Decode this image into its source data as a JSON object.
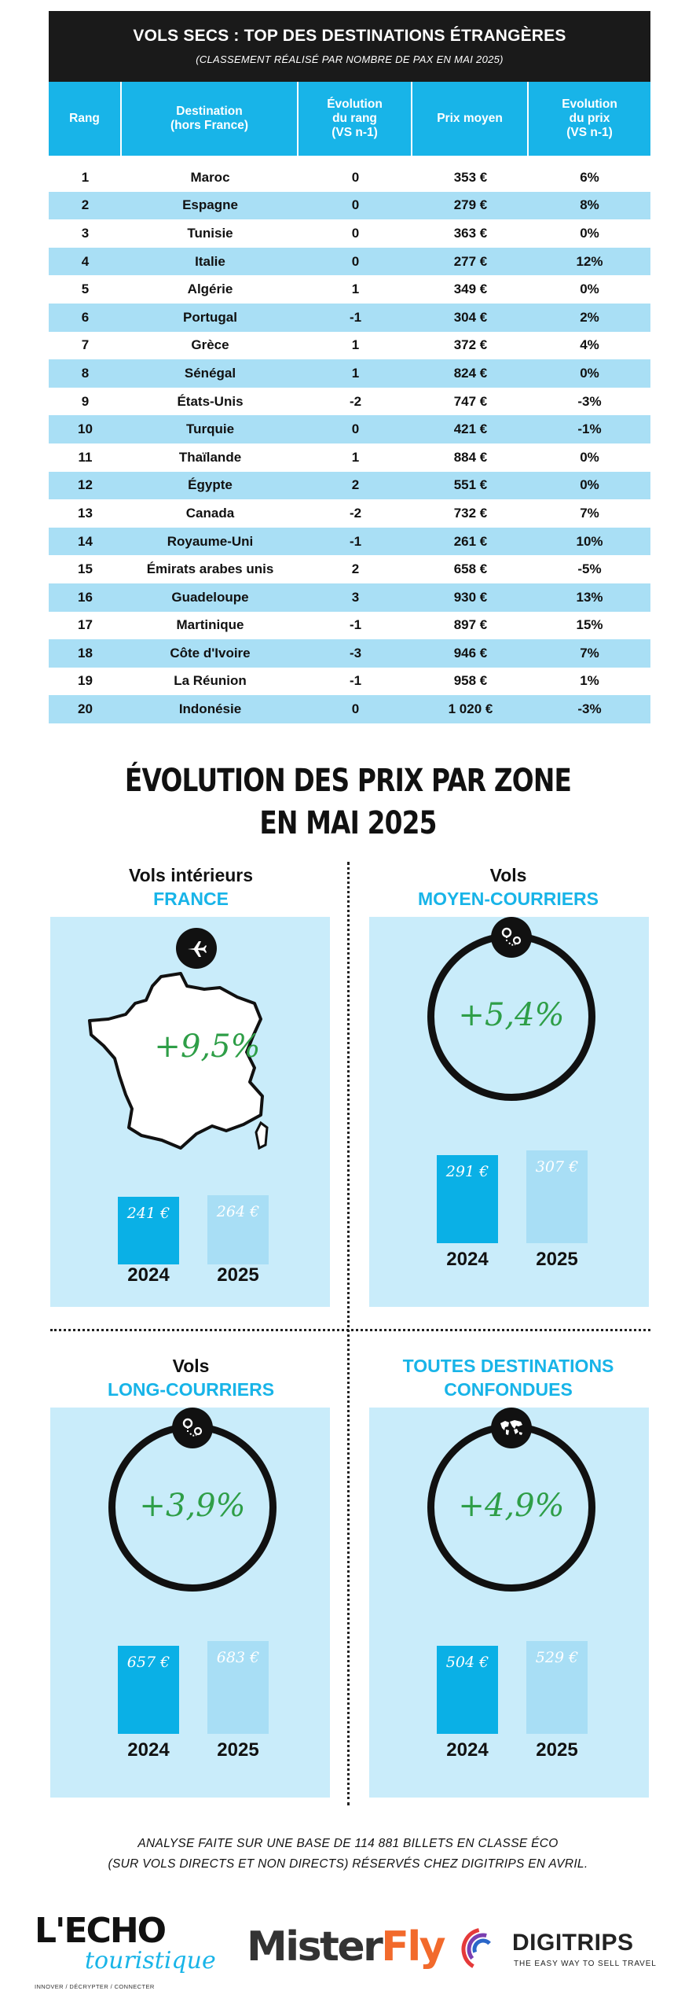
{
  "table": {
    "title": "VOLS SECS : TOP DES DESTINATIONS ÉTRANGÈRES",
    "subtitle": "(CLASSEMENT RÉALISÉ PAR NOMBRE DE PAX EN MAI 2025)",
    "columns": [
      "Rang",
      "Destination\n(hors France)",
      "Évolution\ndu rang\n(VS n-1)",
      "Prix moyen",
      "Evolution\ndu prix\n(VS n-1)"
    ],
    "rows": [
      {
        "rank": "1",
        "destination": "Maroc",
        "rank_change": "0",
        "price": "353 €",
        "price_change": "6%"
      },
      {
        "rank": "2",
        "destination": "Espagne",
        "rank_change": "0",
        "price": "279 €",
        "price_change": "8%"
      },
      {
        "rank": "3",
        "destination": "Tunisie",
        "rank_change": "0",
        "price": "363 €",
        "price_change": "0%"
      },
      {
        "rank": "4",
        "destination": "Italie",
        "rank_change": "0",
        "price": "277 €",
        "price_change": "12%"
      },
      {
        "rank": "5",
        "destination": "Algérie",
        "rank_change": "1",
        "price": "349 €",
        "price_change": "0%"
      },
      {
        "rank": "6",
        "destination": "Portugal",
        "rank_change": "-1",
        "price": "304 €",
        "price_change": "2%"
      },
      {
        "rank": "7",
        "destination": "Grèce",
        "rank_change": "1",
        "price": "372 €",
        "price_change": "4%"
      },
      {
        "rank": "8",
        "destination": "Sénégal",
        "rank_change": "1",
        "price": "824 €",
        "price_change": "0%"
      },
      {
        "rank": "9",
        "destination": "États-Unis",
        "rank_change": "-2",
        "price": "747 €",
        "price_change": "-3%"
      },
      {
        "rank": "10",
        "destination": "Turquie",
        "rank_change": "0",
        "price": "421 €",
        "price_change": "-1%"
      },
      {
        "rank": "11",
        "destination": "Thaïlande",
        "rank_change": "1",
        "price": "884 €",
        "price_change": "0%"
      },
      {
        "rank": "12",
        "destination": "Égypte",
        "rank_change": "2",
        "price": "551 €",
        "price_change": "0%"
      },
      {
        "rank": "13",
        "destination": "Canada",
        "rank_change": "-2",
        "price": "732 €",
        "price_change": "7%"
      },
      {
        "rank": "14",
        "destination": "Royaume-Uni",
        "rank_change": "-1",
        "price": "261 €",
        "price_change": "10%"
      },
      {
        "rank": "15",
        "destination": "Émirats arabes unis",
        "rank_change": "2",
        "price": "658 €",
        "price_change": "-5%"
      },
      {
        "rank": "16",
        "destination": "Guadeloupe",
        "rank_change": "3",
        "price": "930 €",
        "price_change": "13%"
      },
      {
        "rank": "17",
        "destination": "Martinique",
        "rank_change": "-1",
        "price": "897 €",
        "price_change": "15%"
      },
      {
        "rank": "18",
        "destination": "Côte d'Ivoire",
        "rank_change": "-3",
        "price": "946 €",
        "price_change": "7%"
      },
      {
        "rank": "19",
        "destination": "La Réunion",
        "rank_change": "-1",
        "price": "958 €",
        "price_change": "1%"
      },
      {
        "rank": "20",
        "destination": "Indonésie",
        "rank_change": "0",
        "price": "1 020 €",
        "price_change": "-3%"
      }
    ]
  },
  "zones_title_line1": "ÉVOLUTION DES PRIX PAR ZONE",
  "zones_title_line2": "EN MAI 2025",
  "zones": [
    {
      "label_top": "Vols intérieurs",
      "label_blue": "FRANCE",
      "percent": "+9,5%",
      "icon": "airplane-icon",
      "bars": [
        {
          "year": "2024",
          "value": 241,
          "label": "241 €"
        },
        {
          "year": "2025",
          "value": 264,
          "label": "264 €"
        }
      ]
    },
    {
      "label_top": "Vols",
      "label_blue": "MOYEN-COURRIERS",
      "percent": "+5,4%",
      "icon": "route-pin-icon",
      "bars": [
        {
          "year": "2024",
          "value": 291,
          "label": "291 €"
        },
        {
          "year": "2025",
          "value": 307,
          "label": "307 €"
        }
      ]
    },
    {
      "label_top": "Vols",
      "label_blue": "LONG-COURRIERS",
      "percent": "+3,9%",
      "icon": "route-pin-icon",
      "bars": [
        {
          "year": "2024",
          "value": 657,
          "label": "657 €"
        },
        {
          "year": "2025",
          "value": 683,
          "label": "683 €"
        }
      ]
    },
    {
      "label_top": "TOUTES DESTINATIONS",
      "label_blue": "CONFONDUES",
      "percent": "+4,9%",
      "icon": "world-map-icon",
      "bars": [
        {
          "year": "2024",
          "value": 504,
          "label": "504 €"
        },
        {
          "year": "2025",
          "value": 529,
          "label": "529 €"
        }
      ]
    }
  ],
  "footnote_line1": "ANALYSE FAITE SUR UNE BASE DE 114 881 BILLETS EN CLASSE ÉCO",
  "footnote_line2": "(SUR VOLS DIRECTS ET NON DIRECTS) RÉSERVÉS CHEZ DIGITRIPS EN AVRIL.",
  "logos": {
    "echo_main": "L'ECHO",
    "echo_script": "touristique",
    "echo_tagline": "INNOVER / DÉCRYPTER / CONNECTER",
    "misterfly_m": "Mister",
    "misterfly_f": "Fly",
    "digitrips_name": "DIGITRIPS",
    "digitrips_tagline": "THE EASY WAY TO SELL TRAVEL"
  },
  "colors": {
    "accent_blue": "#18b4e8",
    "light_blue": "#a9dff5",
    "panel_blue": "#c9ecfa",
    "percent_green": "#2e9e47",
    "dark": "#1a1a1a",
    "misterfly_orange": "#f26a2c"
  }
}
